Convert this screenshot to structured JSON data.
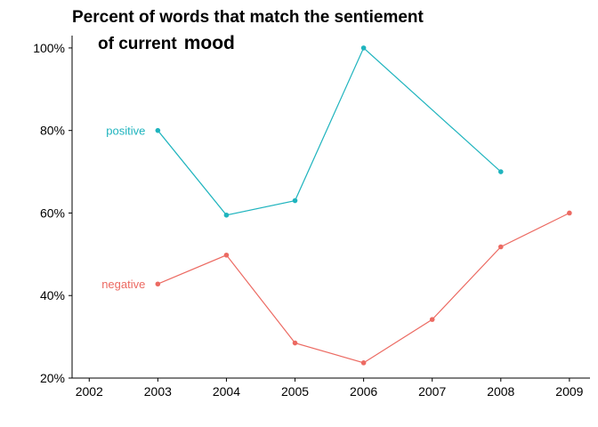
{
  "chart_data": {
    "type": "line",
    "title_line1": "Percent of words that match the sentiement",
    "title_line2_prefix": "of current",
    "title_line2_emphasis": "mood",
    "xlabel": "",
    "ylabel": "",
    "x_ticks": [
      "2002",
      "2003",
      "2004",
      "2005",
      "2006",
      "2007",
      "2008",
      "2009"
    ],
    "y_ticks": [
      "20%",
      "40%",
      "60%",
      "80%",
      "100%"
    ],
    "xlim": [
      2001.75,
      2009.3
    ],
    "ylim": [
      20,
      103
    ],
    "grid": false,
    "legend": "inline labels at left of each series",
    "series": [
      {
        "name": "positive",
        "color": "#1FB4BE",
        "x": [
          2003,
          2004,
          2005,
          2006,
          2008
        ],
        "values": [
          80,
          59.5,
          63,
          100,
          70
        ]
      },
      {
        "name": "negative",
        "color": "#EC6A62",
        "x": [
          2003,
          2004,
          2005,
          2006,
          2007,
          2008,
          2009
        ],
        "values": [
          42.8,
          49.8,
          28.5,
          23.7,
          34.2,
          51.8,
          60
        ]
      }
    ]
  }
}
